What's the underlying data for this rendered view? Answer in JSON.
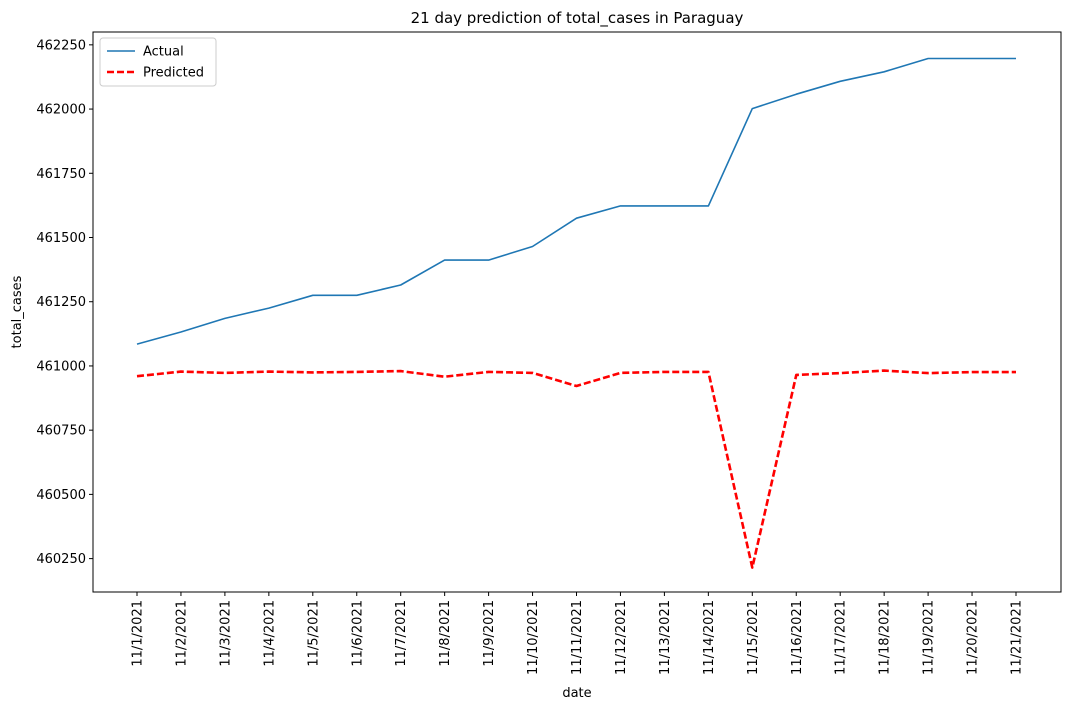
{
  "chart_data": {
    "type": "line",
    "title": "21 day prediction of total_cases in Paraguay",
    "xlabel": "date",
    "ylabel": "total_cases",
    "categories": [
      "11/1/2021",
      "11/2/2021",
      "11/3/2021",
      "11/4/2021",
      "11/5/2021",
      "11/6/2021",
      "11/7/2021",
      "11/8/2021",
      "11/9/2021",
      "11/10/2021",
      "11/11/2021",
      "11/12/2021",
      "11/13/2021",
      "11/14/2021",
      "11/15/2021",
      "11/16/2021",
      "11/17/2021",
      "11/18/2021",
      "11/19/2021",
      "11/20/2021",
      "11/21/2021"
    ],
    "yticks": [
      460250,
      460500,
      460750,
      461000,
      461250,
      461500,
      461750,
      462000,
      462250
    ],
    "ylim": [
      460120,
      462300
    ],
    "grid": false,
    "legend_position": "top-left",
    "series": [
      {
        "name": "Actual",
        "color": "#1f77b4",
        "style": "solid",
        "values": [
          461085,
          461132,
          461185,
          461225,
          461275,
          461275,
          461315,
          461412,
          461412,
          461465,
          461575,
          461623,
          461623,
          461623,
          462002,
          462058,
          462108,
          462145,
          462197,
          462197,
          462197
        ]
      },
      {
        "name": "Predicted",
        "color": "#ff0000",
        "style": "dashed",
        "values": [
          460960,
          460978,
          460973,
          460978,
          460975,
          460977,
          460980,
          460958,
          460977,
          460973,
          460922,
          460973,
          460977,
          460977,
          460215,
          460965,
          460972,
          460982,
          460972,
          460976,
          460976
        ]
      }
    ]
  }
}
